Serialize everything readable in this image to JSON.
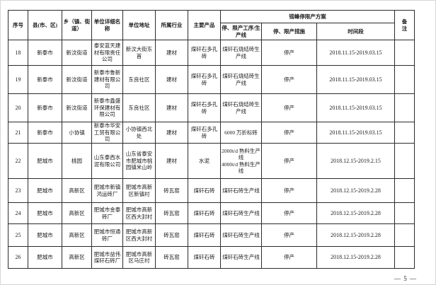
{
  "page": {
    "footer_page_number": "— 5 —"
  },
  "table": {
    "merged_header": "错峰停限产方案",
    "headers": {
      "index": "序号",
      "county": "县(市、区)",
      "township": "乡（镇、街道）",
      "unit_name": "单位详细名称",
      "unit_address": "单位地址",
      "industry": "所属行业",
      "main_product": "主要产品",
      "process_line": "停、限产工序/生产线",
      "measure": "停、限产措施",
      "period": "时间段",
      "remarks": "备注"
    },
    "rows": [
      [
        "18",
        "新泰市",
        "新汶街道",
        "泰安蓝天建材有限责任公司",
        "新汶大街东首",
        "建材",
        "煤矸石多孔砖",
        "煤矸石烧结砖生产线",
        "停产",
        "2018.11.15-2019.03.15",
        ""
      ],
      [
        "19",
        "新泰市",
        "新汶街道",
        "新泰市鲁新建材有限公司",
        "东良社区",
        "建材",
        "煤矸石多孔砖",
        "煤矸石烧结砖生产线",
        "停产",
        "2018.11.15-2019.03.15",
        ""
      ],
      [
        "20",
        "新泰市",
        "新汶街道",
        "新泰市鑫盛环保建材有限公司",
        "东良社区",
        "建材",
        "煤矸石多孔砖",
        "煤矸石烧结砖生产线",
        "停产",
        "2018.11.15-2019.03.15",
        ""
      ],
      [
        "21",
        "新泰市",
        "小协镇",
        "新泰市华安工贸有限公司",
        "小协镇西北处",
        "建材",
        "煤矸石多孔砖",
        "6000 万折标砖",
        "停产",
        "2018.11.15-2019.03.15",
        ""
      ],
      [
        "22",
        "肥城市",
        "桃园",
        "山东泰西水泥有限公司",
        "山东省泰安市肥城市桃园镇米山岭",
        "建材",
        "水泥",
        "2000t/d 熟料生产线\n4000t/d 熟料生产线",
        "停产",
        "2018.12.15-2019.2.15",
        ""
      ],
      [
        "23",
        "肥城市",
        "高新区",
        "肥城市新镇鸿运砖厂",
        "肥城市高新区新镇村",
        "砖瓦窑",
        "煤矸石砖",
        "煤矸石砖生产线",
        "停产",
        "2018.12.15-2019.2.28",
        ""
      ],
      [
        "24",
        "肥城市",
        "高新区",
        "肥城市金泰砖厂",
        "肥城市高新区西大封村",
        "砖瓦窑",
        "煤矸石砖",
        "煤矸石砖生产线",
        "停产",
        "2018.12.15-2019.2.28",
        ""
      ],
      [
        "25",
        "肥城市",
        "高新区",
        "肥城市恒通砖厂",
        "肥城市高新区西大封村",
        "砖瓦窑",
        "煤矸石砖",
        "煤矸石砖生产线",
        "停产",
        "2018.12.15-2019.2.28",
        ""
      ],
      [
        "26",
        "肥城市",
        "高新区",
        "肥城市益伟煤矸石砖厂",
        "肥城市高新区马庄村",
        "砖瓦窑",
        "煤矸石砖",
        "煤矸石砖生产线",
        "停产",
        "2018.12.15-2019.2.28",
        ""
      ]
    ]
  }
}
